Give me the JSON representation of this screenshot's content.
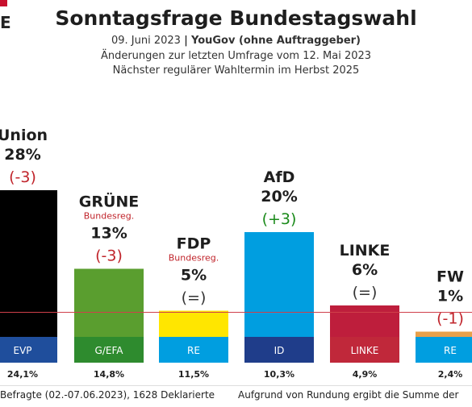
{
  "header": {
    "title": "Sonntagsfrage Bundestagswahl",
    "date": "09. Juni 2023",
    "separator": "|",
    "source": "YouGov (ohne Auftraggeber)",
    "changes_note": "Änderungen zur letzten Umfrage vom 12. Mai 2023",
    "next_election": "Nächster regulärer Wahltermin im Herbst 2025",
    "logo_fragment": "E"
  },
  "footer": {
    "left": "Befragte (02.-07.06.2023), 1628 Deklarierte",
    "right": "Aufgrund von Rundung ergibt die Summe der"
  },
  "chart_data": {
    "type": "bar",
    "ylim": [
      0,
      30
    ],
    "threshold": 5,
    "categories": [
      "Union",
      "GRÜNE",
      "FDP",
      "AfD",
      "LINKE",
      "FW"
    ],
    "values": [
      28,
      13,
      5,
      20,
      6,
      1
    ],
    "value_labels": [
      "28%",
      "13%",
      "5%",
      "20%",
      "6%",
      "1%"
    ],
    "changes": [
      "(-3)",
      "(-3)",
      "(=)",
      "(+3)",
      "(=)",
      "(-1)"
    ],
    "change_directions": [
      "down",
      "down",
      "same",
      "up",
      "same",
      "down"
    ],
    "government_note": [
      "",
      "Bundesreg.",
      "Bundesreg.",
      "",
      "",
      ""
    ],
    "colors": [
      "#000000",
      "#5a9e2f",
      "#ffe600",
      "#009ee0",
      "#be1e3c",
      "#e8a04a"
    ],
    "eu_groups": [
      "EVP",
      "G/EFA",
      "RE",
      "ID",
      "LINKE",
      "RE"
    ],
    "eu_group_colors": [
      "#1f4e9c",
      "#2e8b2e",
      "#009ee0",
      "#1f3d8a",
      "#c0283a",
      "#009ee0"
    ],
    "eu_values": [
      "24,1%",
      "14,8%",
      "11,5%",
      "10,3%",
      "4,9%",
      "2,4%"
    ],
    "change_colors": {
      "up": "#1a8a1a",
      "down": "#c0242b",
      "same": "#333333"
    }
  }
}
